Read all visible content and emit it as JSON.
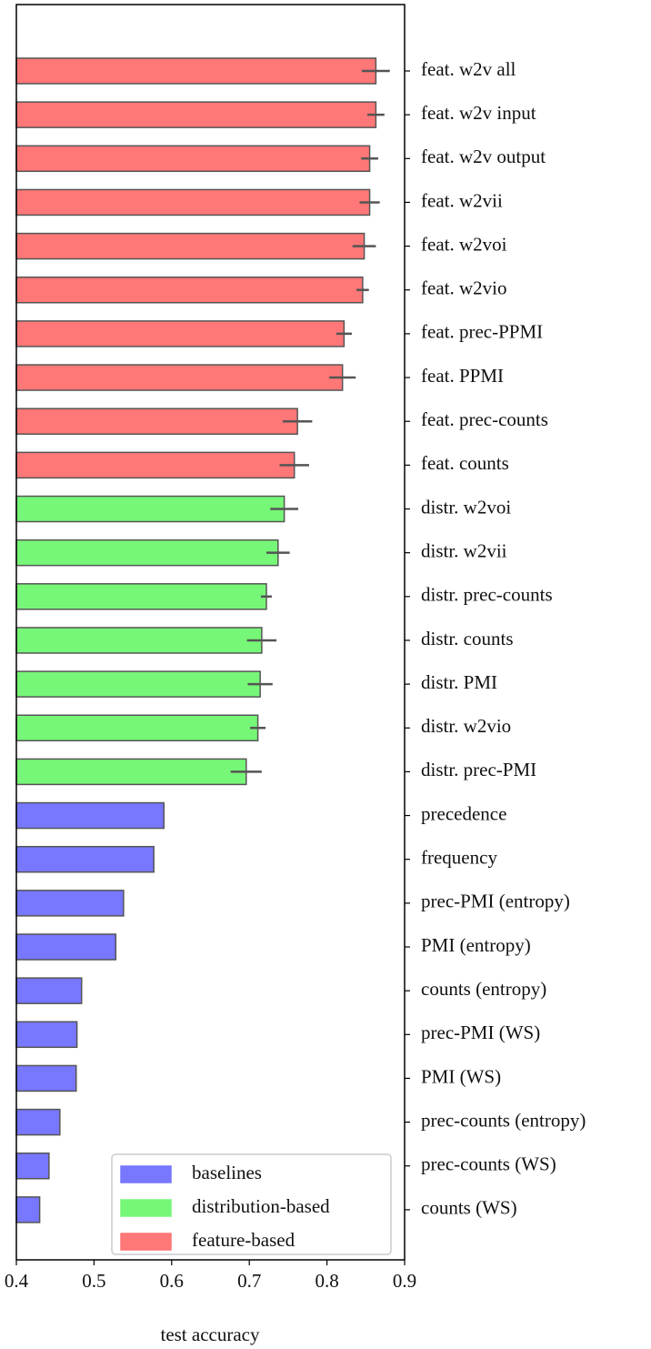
{
  "chart_data": {
    "type": "barh",
    "xlabel": "test accuracy",
    "xlim": [
      0.4,
      0.9
    ],
    "xticks": [
      0.4,
      0.5,
      0.6,
      0.7,
      0.8,
      0.9
    ],
    "legend": "lower right",
    "series": [
      {
        "name": "baselines",
        "color": "#7777ff",
        "categories": [
          "precedence",
          "frequency",
          "prec-PMI (entropy)",
          "PMI (entropy)",
          "counts (entropy)",
          "prec-PMI (WS)",
          "PMI (WS)",
          "prec-counts (entropy)",
          "prec-counts (WS)",
          "counts (WS)"
        ],
        "values": [
          0.59,
          0.577,
          0.538,
          0.528,
          0.484,
          0.478,
          0.477,
          0.456,
          0.442,
          0.43
        ]
      },
      {
        "name": "distribution-based",
        "color": "#77f777",
        "categories": [
          "distr. w2voi",
          "distr. w2vii",
          "distr. prec-counts",
          "distr. counts",
          "distr. PMI",
          "distr. w2vio",
          "distr. prec-PMI"
        ],
        "values": [
          0.745,
          0.737,
          0.722,
          0.716,
          0.714,
          0.711,
          0.696
        ],
        "errors": [
          0.018,
          0.015,
          0.007,
          0.019,
          0.016,
          0.01,
          0.02
        ]
      },
      {
        "name": "feature-based",
        "color": "#ff7777",
        "categories": [
          "feat. w2v all",
          "feat. w2v input",
          "feat. w2v output",
          "feat. w2vii",
          "feat. w2voi",
          "feat. w2vio",
          "feat. prec-PPMI",
          "feat. PPMI",
          "feat. prec-counts",
          "feat. counts"
        ],
        "values": [
          0.863,
          0.863,
          0.855,
          0.855,
          0.848,
          0.846,
          0.822,
          0.82,
          0.762,
          0.758
        ],
        "errors": [
          0.018,
          0.011,
          0.011,
          0.013,
          0.015,
          0.008,
          0.01,
          0.017,
          0.019,
          0.019
        ]
      }
    ]
  }
}
